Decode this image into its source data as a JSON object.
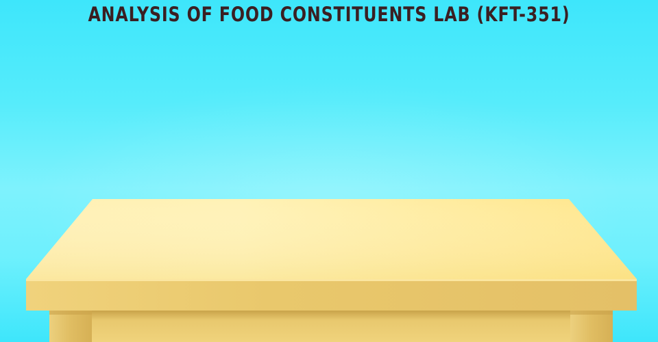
{
  "page": {
    "title": "ANALYSIS OF FOOD CONSTITUENTS LAB (KFT-351)"
  },
  "illustration": {
    "subject": "table",
    "colors": {
      "background_top": "#3ee6fb",
      "background_mid": "#7ef2fd",
      "tabletop_light": "#fff0b0",
      "tabletop": "#ffe690",
      "table_edge": "#e6c565",
      "table_leg": "#e2c066",
      "title_text": "#3a1f22"
    }
  }
}
